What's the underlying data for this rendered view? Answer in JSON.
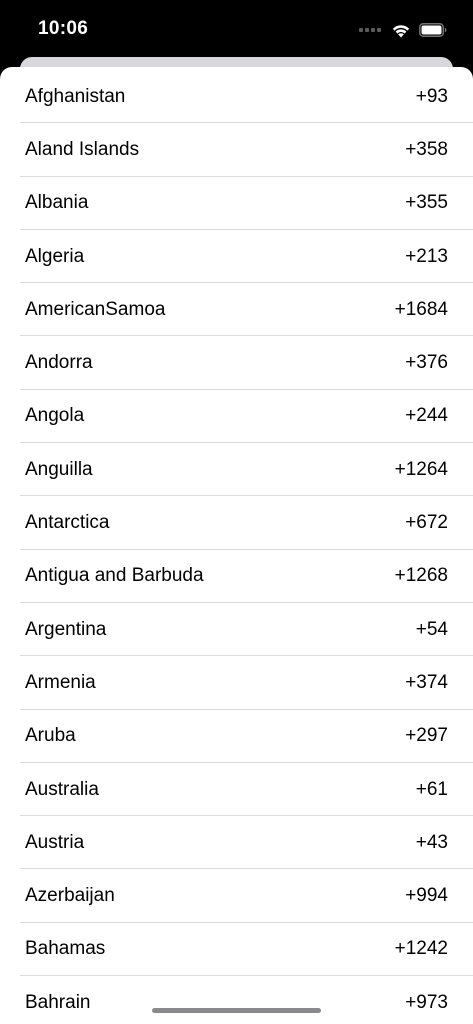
{
  "status_bar": {
    "time": "10:06",
    "icons": [
      "cellular-dots-icon",
      "wifi-icon",
      "battery-icon"
    ]
  },
  "countries": [
    {
      "name": "Afghanistan",
      "code": "+93"
    },
    {
      "name": "Aland Islands",
      "code": "+358"
    },
    {
      "name": "Albania",
      "code": "+355"
    },
    {
      "name": "Algeria",
      "code": "+213"
    },
    {
      "name": "AmericanSamoa",
      "code": "+1684"
    },
    {
      "name": "Andorra",
      "code": "+376"
    },
    {
      "name": "Angola",
      "code": "+244"
    },
    {
      "name": "Anguilla",
      "code": "+1264"
    },
    {
      "name": "Antarctica",
      "code": "+672"
    },
    {
      "name": "Antigua and Barbuda",
      "code": "+1268"
    },
    {
      "name": "Argentina",
      "code": "+54"
    },
    {
      "name": "Armenia",
      "code": "+374"
    },
    {
      "name": "Aruba",
      "code": "+297"
    },
    {
      "name": "Australia",
      "code": "+61"
    },
    {
      "name": "Austria",
      "code": "+43"
    },
    {
      "name": "Azerbaijan",
      "code": "+994"
    },
    {
      "name": "Bahamas",
      "code": "+1242"
    },
    {
      "name": "Bahrain",
      "code": "+973"
    }
  ],
  "colors": {
    "background": "#000000",
    "sheet": "#ffffff",
    "separator": "#dcdcdf",
    "text": "#000000",
    "home_indicator": "#8a8a8e"
  }
}
